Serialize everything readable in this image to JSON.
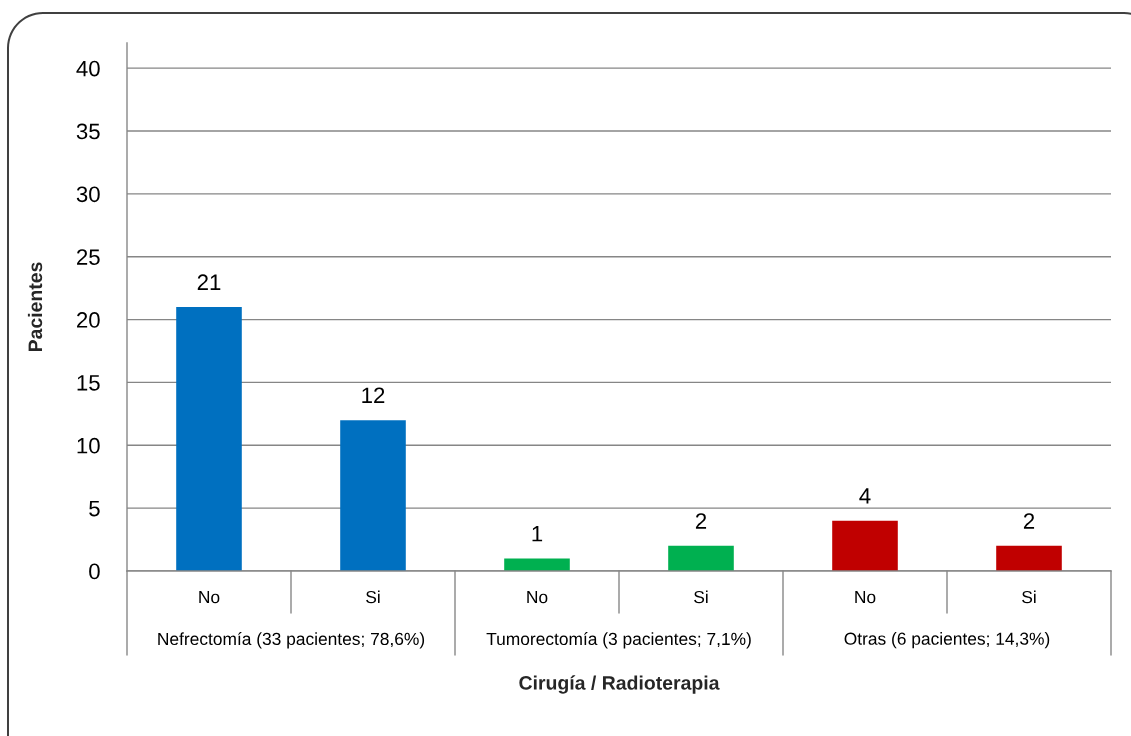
{
  "chart_data": {
    "type": "bar",
    "xlabel": "Cirugía / Radioterapia",
    "ylabel": "Pacientes",
    "categories": [
      "No",
      "Si",
      "No",
      "Si",
      "No",
      "Si"
    ],
    "values": [
      21,
      12,
      1,
      2,
      4,
      2
    ],
    "colors": [
      "#0070c0",
      "#0070c0",
      "#00b050",
      "#00b050",
      "#c00000",
      "#c00000"
    ],
    "ylim": [
      0,
      42
    ],
    "yticks": [
      0,
      5,
      10,
      15,
      20,
      25,
      30,
      35,
      40
    ],
    "grid": "y",
    "data_labels": true,
    "annotations": [
      "Nefrectomía (33 pacientes; 78,6%)",
      "Tumorectomía (3 pacientes; 7,1%)",
      "Otras (6 pacientes; 14,3%)"
    ]
  }
}
